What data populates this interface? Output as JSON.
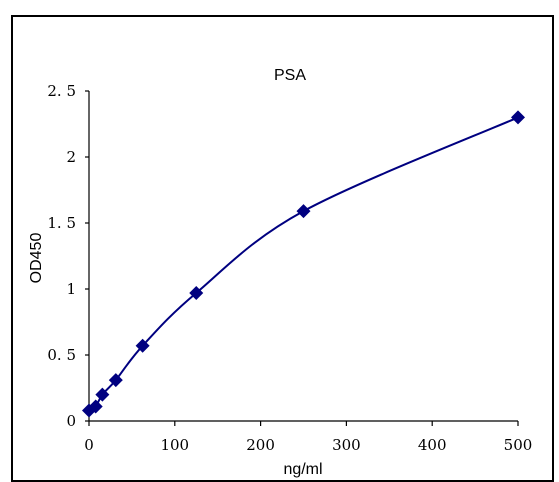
{
  "chart_data": {
    "type": "scatter",
    "title": "PSA",
    "xlabel": "ng/ml",
    "ylabel": "OD450",
    "xlim": [
      0,
      500
    ],
    "ylim": [
      0,
      2.5
    ],
    "x_ticks": [
      0,
      100,
      200,
      300,
      400,
      500
    ],
    "y_ticks": [
      0,
      0.5,
      1,
      1.5,
      2,
      2.5
    ],
    "x_tick_labels": [
      "0",
      "100",
      "200",
      "300",
      "400",
      "500"
    ],
    "y_tick_labels": [
      "0",
      "0. 5",
      "1",
      "1. 5",
      "2",
      "2. 5"
    ],
    "grid": false,
    "legend": "none",
    "series": [
      {
        "marker": "diamond",
        "color": "#000080",
        "line": "smooth",
        "x": [
          0,
          7.8,
          15.6,
          31.25,
          62.5,
          125,
          250,
          500
        ],
        "y": [
          0.08,
          0.11,
          0.2,
          0.31,
          0.57,
          0.97,
          1.59,
          2.3
        ]
      }
    ]
  }
}
